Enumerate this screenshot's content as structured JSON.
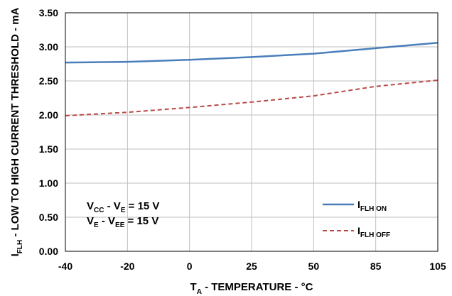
{
  "chart_data": {
    "type": "line",
    "categories": [
      "-40",
      "-20",
      "0",
      "25",
      "50",
      "85",
      "105"
    ],
    "ylim": [
      0,
      3.5
    ],
    "yticks": [
      "0.00",
      "0.50",
      "1.00",
      "1.50",
      "2.00",
      "2.50",
      "3.00",
      "3.50"
    ],
    "grid": true,
    "series": [
      {
        "name_main": "I",
        "name_sub": "FLH ON",
        "color": "#4a7ebb",
        "dashed": false,
        "values": [
          2.77,
          2.78,
          2.81,
          2.85,
          2.9,
          2.98,
          3.06
        ]
      },
      {
        "name_main": "I",
        "name_sub": "FLH OFF",
        "color": "#b94a48",
        "dashed": true,
        "values": [
          1.99,
          2.04,
          2.11,
          2.19,
          2.28,
          2.42,
          2.51
        ]
      }
    ],
    "xlabel": {
      "main": "T",
      "sub": "A",
      "rest": " - TEMPERATURE - °C"
    },
    "ylabel": {
      "main": "I",
      "sub": "FLH",
      "rest": " - LOW TO HIGH CURRENT THRESHOLD - mA"
    },
    "conditions": [
      {
        "a": "V",
        "a_sub": "CC",
        "b": " - V",
        "b_sub": "E",
        "c": " = 15 V"
      },
      {
        "a": "V",
        "a_sub": "E",
        "b": " - V",
        "b_sub": "EE",
        "c": " = 15 V"
      }
    ],
    "legend_position": "bottom-right"
  }
}
